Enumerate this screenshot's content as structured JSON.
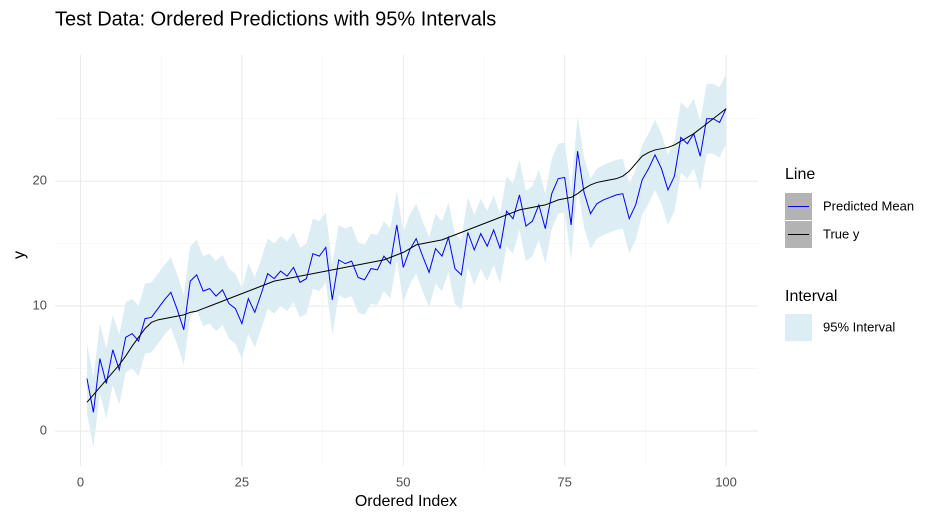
{
  "chart_data": {
    "type": "line",
    "title": "Test Data: Ordered Predictions with 95% Intervals",
    "x_label": "Ordered Index",
    "y_label": "y",
    "x": [
      1,
      2,
      3,
      4,
      5,
      6,
      7,
      8,
      9,
      10,
      11,
      12,
      13,
      14,
      15,
      16,
      17,
      18,
      19,
      20,
      21,
      22,
      23,
      24,
      25,
      26,
      27,
      28,
      29,
      30,
      31,
      32,
      33,
      34,
      35,
      36,
      37,
      38,
      39,
      40,
      41,
      42,
      43,
      44,
      45,
      46,
      47,
      48,
      49,
      50,
      51,
      52,
      53,
      54,
      55,
      56,
      57,
      58,
      59,
      60,
      61,
      62,
      63,
      64,
      65,
      66,
      67,
      68,
      69,
      70,
      71,
      72,
      73,
      74,
      75,
      76,
      77,
      78,
      79,
      80,
      81,
      82,
      83,
      84,
      85,
      86,
      87,
      88,
      89,
      90,
      91,
      92,
      93,
      94,
      95,
      96,
      97,
      98,
      99,
      100
    ],
    "series": [
      {
        "name": "Predicted Mean",
        "color": "#0000ff",
        "values": [
          4.2,
          1.5,
          5.8,
          3.8,
          6.5,
          4.9,
          7.5,
          7.8,
          7.2,
          9.0,
          9.1,
          9.8,
          10.5,
          11.1,
          9.7,
          8.1,
          12.0,
          12.5,
          11.2,
          11.4,
          10.8,
          11.3,
          10.2,
          9.8,
          8.6,
          10.6,
          9.5,
          11.0,
          12.6,
          12.2,
          12.8,
          12.4,
          13.1,
          11.9,
          12.2,
          14.2,
          14.0,
          14.7,
          10.5,
          13.7,
          13.4,
          13.6,
          12.3,
          12.1,
          13.0,
          12.9,
          14.0,
          13.4,
          16.5,
          13.1,
          14.5,
          15.4,
          14.0,
          12.7,
          14.6,
          14.0,
          15.5,
          13.0,
          12.5,
          15.9,
          14.5,
          15.8,
          14.8,
          16.1,
          14.6,
          17.6,
          17.0,
          18.9,
          16.4,
          16.8,
          18.1,
          16.2,
          19.0,
          20.2,
          20.3,
          16.5,
          22.4,
          19.1,
          17.4,
          18.2,
          18.5,
          18.7,
          18.9,
          19.0,
          17.0,
          18.1,
          20.1,
          21.0,
          22.1,
          21.0,
          19.3,
          20.4,
          23.5,
          23.0,
          23.8,
          22.0,
          25.0,
          25.0,
          24.7,
          25.8
        ]
      },
      {
        "name": "True y",
        "color": "#000000",
        "values": [
          2.3,
          2.9,
          3.5,
          4.1,
          4.7,
          5.3,
          6.0,
          6.8,
          7.5,
          8.2,
          8.7,
          8.9,
          9.0,
          9.1,
          9.2,
          9.3,
          9.5,
          9.6,
          9.8,
          10.0,
          10.2,
          10.4,
          10.6,
          10.8,
          11.0,
          11.2,
          11.4,
          11.6,
          11.8,
          12.0,
          12.1,
          12.2,
          12.3,
          12.4,
          12.5,
          12.6,
          12.7,
          12.8,
          12.9,
          13.0,
          13.1,
          13.2,
          13.3,
          13.4,
          13.5,
          13.6,
          13.7,
          13.9,
          14.1,
          14.3,
          14.6,
          14.9,
          15.0,
          15.1,
          15.2,
          15.3,
          15.5,
          15.7,
          15.9,
          16.1,
          16.3,
          16.5,
          16.7,
          16.9,
          17.1,
          17.3,
          17.5,
          17.7,
          17.8,
          17.9,
          18.0,
          18.1,
          18.3,
          18.5,
          18.6,
          18.7,
          19.0,
          19.4,
          19.7,
          19.9,
          20.0,
          20.1,
          20.2,
          20.4,
          20.8,
          21.4,
          22.0,
          22.3,
          22.5,
          22.6,
          22.7,
          22.9,
          23.2,
          23.5,
          23.8,
          24.2,
          24.6,
          25.0,
          25.4,
          25.8
        ]
      }
    ],
    "interval": {
      "name": "95% Interval",
      "color": "#dcedf4",
      "lower": [
        1.4,
        -1.3,
        3.0,
        1.0,
        3.7,
        2.1,
        4.7,
        5.0,
        4.4,
        6.2,
        6.3,
        7.0,
        7.7,
        8.3,
        6.9,
        5.3,
        9.2,
        9.7,
        8.4,
        8.6,
        8.0,
        8.5,
        7.4,
        7.0,
        5.8,
        7.8,
        6.7,
        8.2,
        9.8,
        9.4,
        10.0,
        9.6,
        10.3,
        9.1,
        9.4,
        11.4,
        11.2,
        11.9,
        7.7,
        10.9,
        10.6,
        10.8,
        9.5,
        9.3,
        10.2,
        10.1,
        11.2,
        10.6,
        13.7,
        10.3,
        11.7,
        12.6,
        11.2,
        9.9,
        11.8,
        11.2,
        12.7,
        10.2,
        9.7,
        13.1,
        11.7,
        13.0,
        12.0,
        13.3,
        11.8,
        14.8,
        14.2,
        16.1,
        13.6,
        14.0,
        15.3,
        13.4,
        16.2,
        17.4,
        17.5,
        13.7,
        19.6,
        16.3,
        14.6,
        15.4,
        15.7,
        15.9,
        16.1,
        16.2,
        14.2,
        15.3,
        17.3,
        18.2,
        19.3,
        18.2,
        16.5,
        17.6,
        20.7,
        20.2,
        21.0,
        19.2,
        22.2,
        22.2,
        21.9,
        23.0
      ],
      "upper": [
        7.0,
        4.3,
        8.6,
        6.6,
        9.3,
        7.7,
        10.3,
        10.6,
        10.0,
        11.8,
        11.9,
        12.6,
        13.3,
        13.9,
        12.5,
        10.9,
        14.8,
        15.3,
        14.0,
        14.2,
        13.6,
        14.1,
        13.0,
        12.6,
        11.4,
        13.4,
        12.3,
        13.8,
        15.4,
        15.0,
        15.6,
        15.2,
        15.9,
        14.7,
        15.0,
        17.0,
        16.8,
        17.5,
        13.3,
        16.5,
        16.2,
        16.4,
        15.1,
        14.9,
        15.8,
        15.7,
        16.8,
        16.2,
        19.3,
        15.9,
        17.3,
        18.2,
        16.8,
        15.5,
        17.4,
        16.8,
        18.3,
        15.8,
        15.3,
        18.7,
        17.3,
        18.6,
        17.6,
        18.9,
        17.4,
        20.4,
        19.8,
        21.7,
        19.2,
        19.6,
        20.9,
        19.0,
        21.8,
        23.0,
        23.1,
        19.3,
        25.2,
        21.9,
        20.2,
        21.0,
        21.3,
        21.5,
        21.7,
        21.8,
        19.8,
        20.9,
        22.9,
        23.8,
        24.9,
        23.8,
        22.1,
        23.2,
        26.3,
        25.8,
        26.6,
        24.8,
        27.8,
        27.8,
        27.5,
        28.6
      ]
    },
    "line_legend_title": "Line",
    "interval_legend_title": "Interval",
    "xlim": [
      -3.95,
      104.95
    ],
    "ylim": [
      -2.8,
      30.1
    ],
    "xticks": [
      0,
      25,
      50,
      75,
      100
    ],
    "yticks": [
      0,
      10,
      20
    ],
    "x_minor_ticks": [
      12.5,
      37.5,
      62.5,
      87.5
    ],
    "y_minor_ticks": [
      5,
      15,
      25
    ],
    "grid": true
  }
}
